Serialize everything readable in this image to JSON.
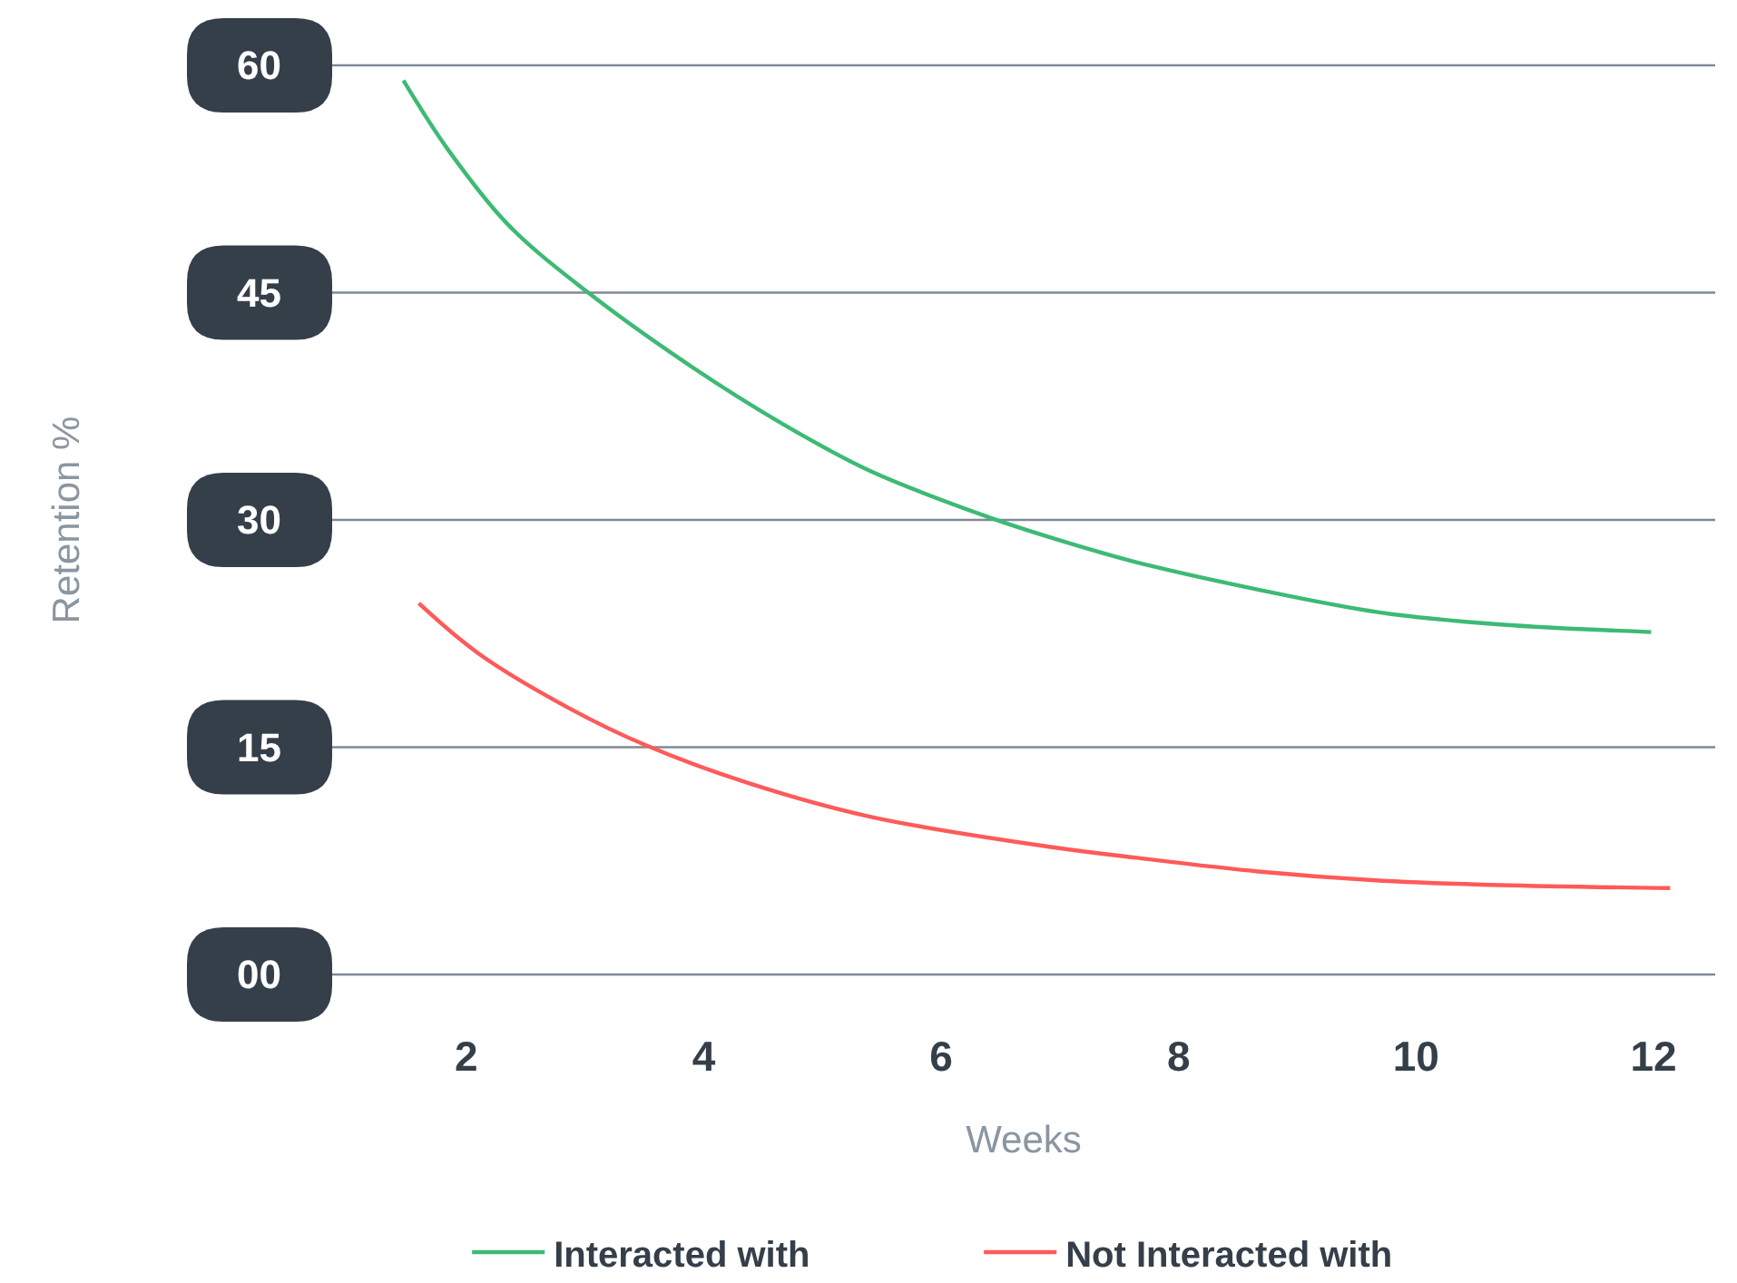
{
  "chart_data": {
    "type": "line",
    "xlabel": "Weeks",
    "ylabel": "Retention %",
    "xlim": [
      0.87,
      12.52
    ],
    "xticks": [
      2,
      4,
      6,
      8,
      10,
      12
    ],
    "ylim": [
      0,
      60
    ],
    "yticks": [
      {
        "value": 0,
        "label": "00"
      },
      15,
      30,
      45,
      60
    ],
    "grid": "y",
    "legend": "bottom",
    "line_style": "solid",
    "series": [
      {
        "name": "Interacted with",
        "color": "#3dba74",
        "x": [
          1.47,
          1.84,
          2.35,
          3.01,
          3.88,
          4.65,
          5.41,
          6.43,
          6.94,
          7.65,
          8.67,
          9.69,
          10.71,
          11.98
        ],
        "values": [
          59.0,
          54.5,
          49.5,
          45.1,
          40.2,
          36.4,
          33.2,
          30.1,
          28.8,
          27.2,
          25.4,
          23.9,
          23.1,
          22.6
        ]
      },
      {
        "name": "Not Interacted with",
        "color": "#ff5a5a",
        "x": [
          1.6,
          2.1,
          2.86,
          3.52,
          4.39,
          5.41,
          6.94,
          7.65,
          8.67,
          9.69,
          10.71,
          12.14
        ],
        "values": [
          24.5,
          21.2,
          17.6,
          15.1,
          12.6,
          10.4,
          8.4,
          7.7,
          6.8,
          6.2,
          5.9,
          5.7
        ]
      }
    ]
  }
}
